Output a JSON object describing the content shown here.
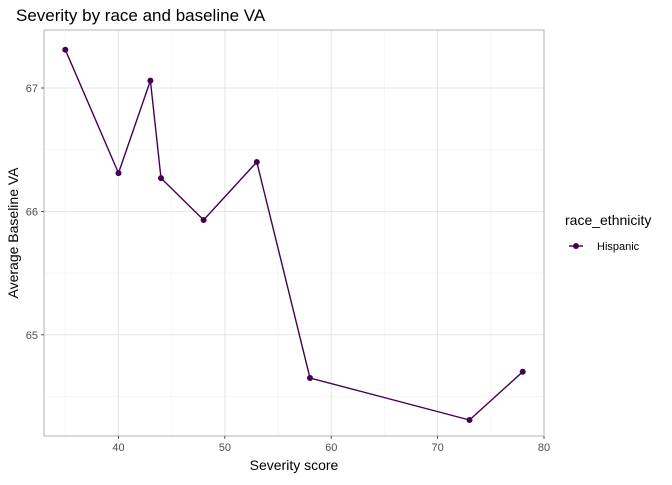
{
  "chart_data": {
    "type": "line",
    "title": "Severity by race and baseline VA",
    "xlabel": "Severity score",
    "ylabel": "Average Baseline VA",
    "xlim": [
      33,
      80
    ],
    "ylim": [
      64.18,
      67.47
    ],
    "x_ticks": [
      40,
      50,
      60,
      70,
      80
    ],
    "y_ticks": [
      65,
      66,
      67
    ],
    "grid": true,
    "legend": {
      "title": "race_ethnicity",
      "position": "right"
    },
    "series": [
      {
        "name": "Hispanic",
        "color": "#440154",
        "x": [
          35,
          40,
          43,
          44,
          48,
          53,
          58,
          73,
          78
        ],
        "y": [
          67.31,
          66.31,
          67.06,
          66.27,
          65.93,
          66.4,
          64.65,
          64.31,
          64.7
        ]
      }
    ]
  }
}
